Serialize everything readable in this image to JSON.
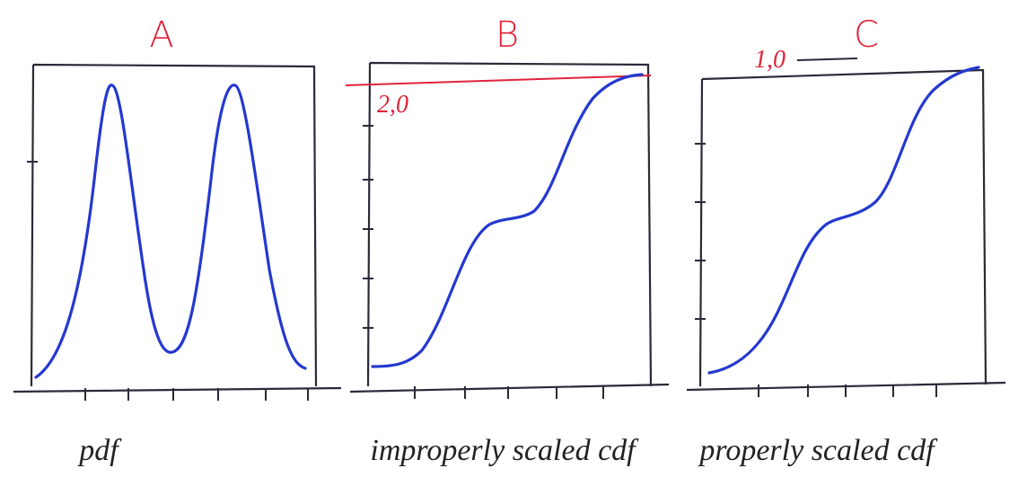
{
  "panels": [
    {
      "title": "A",
      "caption": "pdf"
    },
    {
      "title": "B",
      "caption": "improperly scaled cdf",
      "annotation": "2,0"
    },
    {
      "title": "C",
      "caption": "properly scaled cdf",
      "annotation": "1,0"
    }
  ]
}
